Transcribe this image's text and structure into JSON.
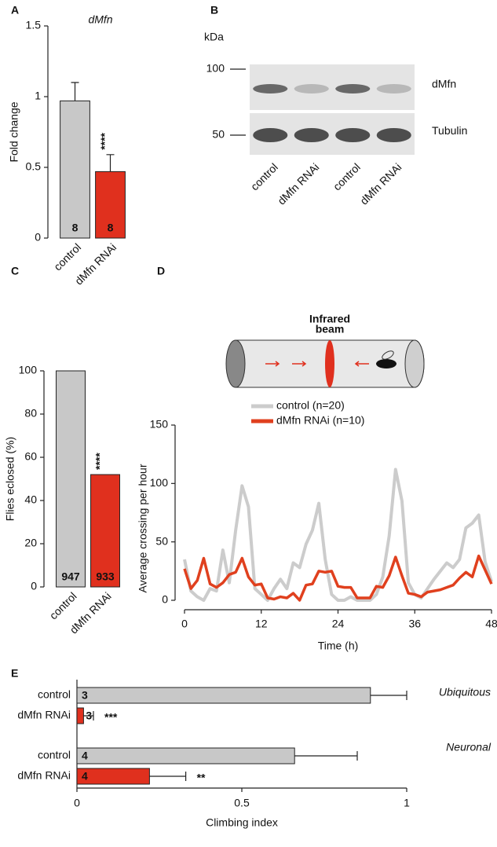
{
  "chart_data": [
    {
      "type": "bar",
      "panel": "A",
      "title": "dMfn",
      "ylabel": "Fold change",
      "categories": [
        "control",
        "dMfn RNAi"
      ],
      "values": [
        0.97,
        0.47
      ],
      "errors": [
        0.13,
        0.12
      ],
      "colors": [
        "#c8c8c8",
        "#e0301e"
      ],
      "n_labels": [
        "8",
        "8"
      ],
      "significance": [
        null,
        "****"
      ],
      "ylim": [
        0,
        1.5
      ],
      "yticks": [
        0,
        0.5,
        1,
        1.5
      ]
    },
    {
      "type": "blot",
      "panel": "B",
      "unit": "kDa",
      "markers": [
        100,
        50
      ],
      "rows": [
        "dMfn",
        "Tubulin"
      ],
      "lanes": [
        "control",
        "dMfn RNAi",
        "control",
        "dMfn RNAi"
      ]
    },
    {
      "type": "bar",
      "panel": "C",
      "ylabel": "Flies eclosed (%)",
      "categories": [
        "control",
        "dMfn RNAi"
      ],
      "values": [
        100,
        52
      ],
      "colors": [
        "#c8c8c8",
        "#e0301e"
      ],
      "n_labels": [
        "947",
        "933"
      ],
      "significance": [
        null,
        "****"
      ],
      "ylim": [
        0,
        100
      ],
      "yticks": [
        0,
        20,
        40,
        60,
        80,
        100
      ]
    },
    {
      "type": "line",
      "panel": "D",
      "xlabel": "Time (h)",
      "ylabel": "Average crossing per hour",
      "annotation": [
        "Infrared",
        "beam"
      ],
      "x": [
        0,
        1,
        2,
        3,
        4,
        5,
        6,
        7,
        8,
        9,
        10,
        11,
        12,
        13,
        14,
        15,
        16,
        17,
        18,
        19,
        20,
        21,
        22,
        23,
        24,
        25,
        26,
        27,
        28,
        29,
        30,
        31,
        32,
        33,
        34,
        35,
        36,
        37,
        38,
        39,
        40,
        41,
        42,
        43,
        44,
        45,
        46,
        47,
        48
      ],
      "series": [
        {
          "name": "control (n=20)",
          "color": "#cccccc",
          "values": [
            35,
            8,
            3,
            0,
            10,
            8,
            43,
            15,
            60,
            98,
            80,
            10,
            5,
            0,
            10,
            18,
            10,
            32,
            28,
            48,
            60,
            83,
            35,
            5,
            0,
            0,
            3,
            0,
            0,
            0,
            5,
            20,
            55,
            112,
            85,
            15,
            5,
            2,
            10,
            18,
            25,
            32,
            28,
            35,
            62,
            66,
            73,
            33,
            16
          ]
        },
        {
          "name": "dMfn RNAi (n=10)",
          "color": "#e0401e",
          "values": [
            27,
            10,
            17,
            36,
            14,
            11,
            15,
            22,
            24,
            36,
            20,
            13,
            14,
            2,
            1,
            3,
            2,
            6,
            0,
            13,
            14,
            25,
            24,
            25,
            12,
            11,
            11,
            2,
            2,
            2,
            12,
            11,
            21,
            37,
            21,
            6,
            5,
            3,
            7,
            8,
            9,
            11,
            13,
            19,
            24,
            20,
            38,
            26,
            14
          ]
        }
      ],
      "xlim": [
        0,
        48
      ],
      "xticks": [
        0,
        12,
        24,
        36,
        48
      ],
      "ylim": [
        0,
        150
      ],
      "yticks": [
        0,
        50,
        100,
        150
      ]
    },
    {
      "type": "hbar",
      "panel": "E",
      "xlabel": "Climbing index",
      "groups": [
        "Ubiquitous",
        "Neuronal"
      ],
      "categories": [
        "control",
        "dMfn RNAi",
        "control",
        "dMfn RNAi"
      ],
      "values": [
        0.89,
        0.02,
        0.66,
        0.22
      ],
      "errors": [
        0.11,
        0.03,
        0.19,
        0.11
      ],
      "colors": [
        "#c8c8c8",
        "#e0301e",
        "#c8c8c8",
        "#e0301e"
      ],
      "n_labels": [
        "3",
        "3",
        "4",
        "4"
      ],
      "significance": [
        null,
        "***",
        null,
        "**"
      ],
      "xlim": [
        0,
        1
      ],
      "xticks": [
        0,
        0.5,
        1
      ]
    }
  ]
}
